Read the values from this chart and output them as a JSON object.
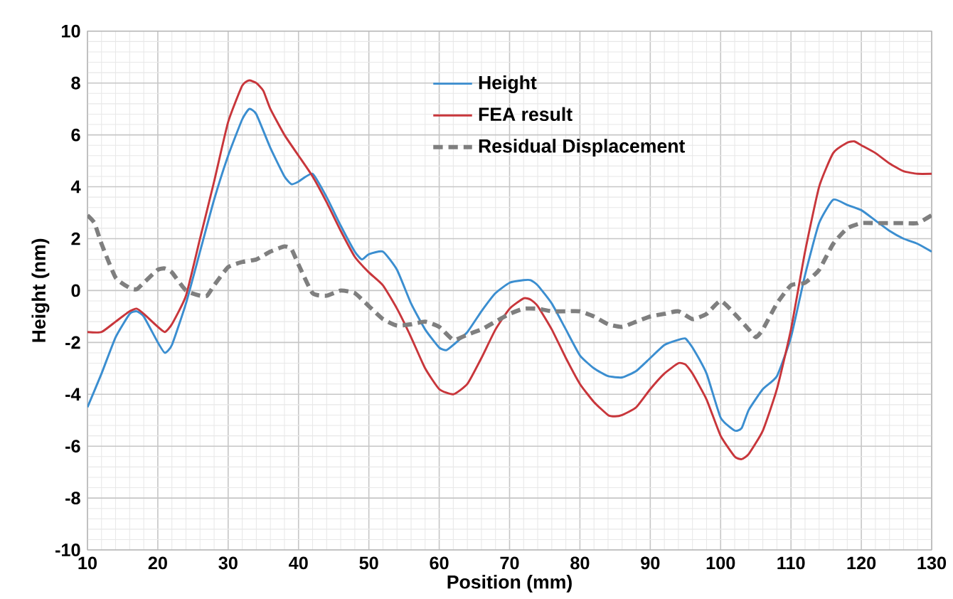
{
  "chart_data": {
    "type": "line",
    "xlabel": "Position (mm)",
    "ylabel": "Height (nm)",
    "xlim": [
      10,
      130
    ],
    "xticks": [
      10,
      20,
      30,
      40,
      50,
      60,
      70,
      80,
      90,
      100,
      110,
      120,
      130
    ],
    "ylim": [
      -10,
      10
    ],
    "yticks": [
      -10,
      -8,
      -6,
      -4,
      -2,
      0,
      2,
      4,
      6,
      8,
      10
    ],
    "grid": true,
    "legend": "top",
    "series": [
      {
        "name": "Height",
        "color": "#3b8ed0",
        "line_style": "solid",
        "x": [
          10,
          12,
          14,
          16,
          17,
          18,
          20,
          21,
          22,
          24,
          26,
          28,
          30,
          32,
          33,
          34,
          36,
          38,
          39,
          40,
          42,
          44,
          46,
          48,
          49,
          50,
          52,
          54,
          56,
          58,
          60,
          61,
          62,
          64,
          66,
          68,
          70,
          72,
          73,
          74,
          76,
          78,
          80,
          82,
          84,
          86,
          88,
          90,
          92,
          94,
          95,
          96,
          98,
          100,
          102,
          103,
          104,
          106,
          108,
          110,
          112,
          114,
          116,
          118,
          120,
          122,
          124,
          126,
          128,
          130
        ],
        "values": [
          -4.5,
          -3.2,
          -1.8,
          -0.9,
          -0.8,
          -1.0,
          -2.0,
          -2.4,
          -2.1,
          -0.5,
          1.5,
          3.5,
          5.2,
          6.6,
          7.0,
          6.8,
          5.5,
          4.4,
          4.1,
          4.2,
          4.5,
          3.6,
          2.5,
          1.5,
          1.2,
          1.4,
          1.5,
          0.8,
          -0.5,
          -1.5,
          -2.2,
          -2.3,
          -2.1,
          -1.6,
          -0.8,
          -0.1,
          0.3,
          0.4,
          0.4,
          0.2,
          -0.5,
          -1.5,
          -2.5,
          -3.0,
          -3.3,
          -3.35,
          -3.1,
          -2.6,
          -2.1,
          -1.9,
          -1.85,
          -2.2,
          -3.2,
          -4.9,
          -5.4,
          -5.3,
          -4.6,
          -3.8,
          -3.3,
          -1.8,
          0.6,
          2.6,
          3.5,
          3.3,
          3.1,
          2.7,
          2.3,
          2.0,
          1.8,
          1.5
        ]
      },
      {
        "name": "FEA result",
        "color": "#c8363b",
        "line_style": "solid",
        "x": [
          10,
          12,
          14,
          16,
          17,
          18,
          20,
          21,
          22,
          24,
          26,
          28,
          30,
          32,
          33,
          34,
          35,
          36,
          38,
          40,
          42,
          44,
          46,
          48,
          50,
          52,
          54,
          56,
          58,
          60,
          62,
          64,
          66,
          68,
          70,
          72,
          73,
          74,
          76,
          78,
          80,
          82,
          84,
          85,
          86,
          88,
          90,
          92,
          94,
          95,
          96,
          98,
          100,
          102,
          103,
          104,
          106,
          108,
          110,
          112,
          114,
          116,
          118,
          119,
          120,
          122,
          124,
          126,
          128,
          130
        ],
        "values": [
          -1.6,
          -1.6,
          -1.2,
          -0.8,
          -0.7,
          -0.9,
          -1.4,
          -1.6,
          -1.3,
          -0.2,
          2.0,
          4.2,
          6.5,
          7.9,
          8.1,
          8.0,
          7.7,
          7.0,
          6.0,
          5.2,
          4.4,
          3.4,
          2.3,
          1.3,
          0.7,
          0.2,
          -0.7,
          -1.8,
          -3.0,
          -3.8,
          -4.0,
          -3.6,
          -2.6,
          -1.5,
          -0.7,
          -0.3,
          -0.35,
          -0.6,
          -1.5,
          -2.6,
          -3.6,
          -4.3,
          -4.8,
          -4.85,
          -4.8,
          -4.5,
          -3.8,
          -3.2,
          -2.8,
          -2.85,
          -3.2,
          -4.2,
          -5.6,
          -6.4,
          -6.5,
          -6.3,
          -5.4,
          -3.8,
          -1.5,
          1.5,
          4.0,
          5.3,
          5.7,
          5.75,
          5.6,
          5.3,
          4.9,
          4.6,
          4.5,
          4.5
        ]
      },
      {
        "name": "Residual Displacement",
        "color": "#7f7f7f",
        "line_style": "dashed",
        "x": [
          10,
          11,
          12,
          14,
          16,
          17,
          18,
          20,
          21,
          22,
          24,
          26,
          27,
          28,
          30,
          32,
          34,
          36,
          38,
          39,
          40,
          42,
          44,
          46,
          48,
          50,
          52,
          54,
          56,
          58,
          60,
          62,
          64,
          66,
          68,
          70,
          72,
          74,
          76,
          78,
          80,
          82,
          84,
          86,
          88,
          90,
          92,
          94,
          96,
          98,
          100,
          102,
          104,
          105,
          106,
          108,
          110,
          112,
          114,
          116,
          118,
          120,
          122,
          124,
          126,
          128,
          130
        ],
        "values": [
          2.9,
          2.6,
          1.8,
          0.5,
          0.1,
          0.05,
          0.3,
          0.8,
          0.85,
          0.7,
          0.0,
          -0.2,
          -0.2,
          0.2,
          0.9,
          1.1,
          1.2,
          1.5,
          1.7,
          1.6,
          1.0,
          -0.1,
          -0.2,
          0.0,
          -0.1,
          -0.6,
          -1.1,
          -1.35,
          -1.3,
          -1.2,
          -1.4,
          -1.9,
          -1.7,
          -1.5,
          -1.2,
          -0.9,
          -0.7,
          -0.7,
          -0.8,
          -0.8,
          -0.8,
          -1.0,
          -1.3,
          -1.4,
          -1.2,
          -1.0,
          -0.9,
          -0.8,
          -1.1,
          -0.9,
          -0.4,
          -0.9,
          -1.5,
          -1.8,
          -1.5,
          -0.5,
          0.2,
          0.3,
          0.8,
          1.8,
          2.4,
          2.6,
          2.6,
          2.6,
          2.6,
          2.6,
          2.9
        ]
      }
    ]
  }
}
